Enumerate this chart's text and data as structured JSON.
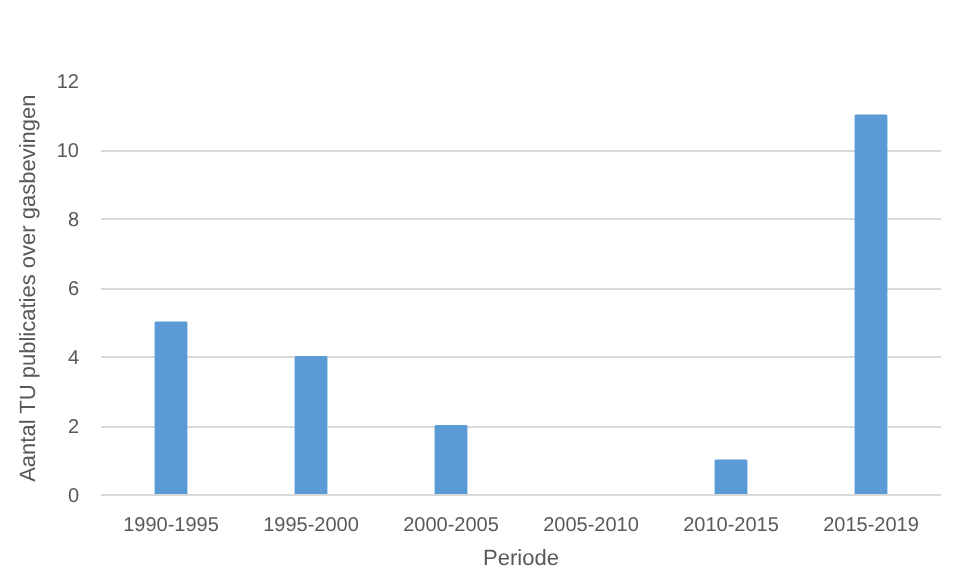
{
  "chart_data": {
    "type": "bar",
    "xlabel": "Periode",
    "ylabel": "Aantal TU publicaties over gasbevingen",
    "categories": [
      "1990-1995",
      "1995-2000",
      "2000-2005",
      "2005-2010",
      "2010-2015",
      "2015-2019"
    ],
    "values": [
      5,
      4,
      2,
      0,
      1,
      11
    ],
    "color": "#5b9bd5",
    "ylim": [
      0,
      12
    ],
    "yticks": [
      0,
      2,
      4,
      6,
      8,
      10,
      12
    ],
    "grid": "y"
  }
}
